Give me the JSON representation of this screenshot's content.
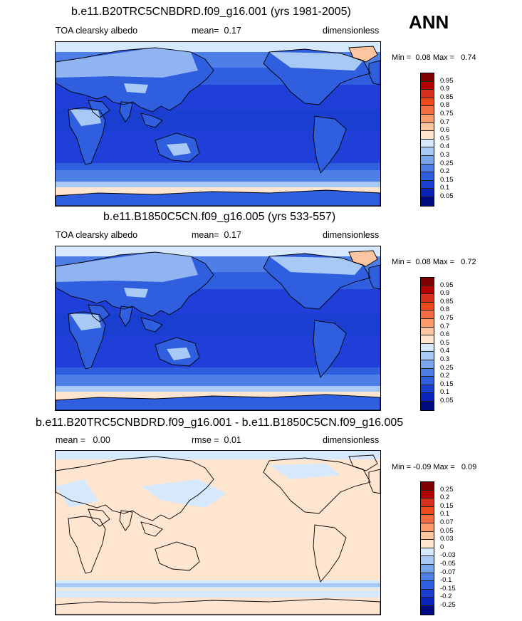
{
  "season": "ANN",
  "panels": [
    {
      "title": "b.e11.B20TRC5CNBDRD.f09_g16.001 (yrs 1981-2005)",
      "left_label": "TOA clearsky albedo",
      "mid_label": "mean=",
      "mid_value": "0.17",
      "right_label": "dimensionless",
      "min_label": "Min =",
      "min_value": "0.08",
      "max_label": "Max =",
      "max_value": "0.74",
      "map_type": "absolute"
    },
    {
      "title": "b.e11.B1850C5CN.f09_g16.005 (yrs 533-557)",
      "left_label": "TOA clearsky albedo",
      "mid_label": "mean=",
      "mid_value": "0.17",
      "right_label": "dimensionless",
      "min_label": "Min =",
      "min_value": "0.08",
      "max_label": "Max =",
      "max_value": "0.72",
      "map_type": "absolute"
    },
    {
      "title": "b.e11.B20TRC5CNBDRD.f09_g16.001 - b.e11.B1850C5CN.f09_g16.005",
      "left_label": "mean =",
      "left_value": "0.00",
      "mid_label": "rmse =",
      "mid_value": "0.01",
      "right_label": "dimensionless",
      "min_label": "Min =",
      "min_value": "-0.09",
      "max_label": "Max =",
      "max_value": "0.09",
      "map_type": "difference"
    }
  ],
  "colorbars": {
    "absolute": {
      "labels": [
        "0.95",
        "0.9",
        "0.85",
        "0.8",
        "0.75",
        "0.7",
        "0.6",
        "0.5",
        "0.4",
        "0.3",
        "0.25",
        "0.2",
        "0.15",
        "0.1",
        "0.05"
      ],
      "colors": [
        "#7f0000",
        "#b30000",
        "#d7301f",
        "#ef4a1c",
        "#f46d43",
        "#fb9a6a",
        "#fdc6a0",
        "#fde5d0",
        "#d6e8fb",
        "#a9c9f5",
        "#7aa6ee",
        "#4e7fe6",
        "#2f5fde",
        "#1a3fd0",
        "#0a22b8",
        "#020a80"
      ]
    },
    "difference": {
      "labels": [
        "0.25",
        "0.2",
        "0.15",
        "0.1",
        "0.07",
        "0.05",
        "0.03",
        "0",
        "-0.03",
        "-0.05",
        "-0.07",
        "-0.1",
        "-0.15",
        "-0.2",
        "-0.25"
      ],
      "colors": [
        "#7f0000",
        "#b30000",
        "#d7301f",
        "#ef4a1c",
        "#f46d43",
        "#fb9a6a",
        "#fdc6a0",
        "#fde5d0",
        "#d6e8fb",
        "#a9c9f5",
        "#7aa6ee",
        "#4e7fe6",
        "#2f5fde",
        "#1a3fd0",
        "#0a22b8",
        "#020a80"
      ]
    }
  },
  "map_colors": {
    "ocean_tropics": "#1f3fd8",
    "ocean_mid": "#2f5fde",
    "ocean_sub": "#4e7fe6",
    "ocean_light": "#a9c9f5",
    "polar_band": "#d6e8fb",
    "sea_ice": "#fde5d0",
    "ice_high": "#fdc6a0",
    "desert": "#a9c9f5",
    "land": "#2f5fde",
    "diff_bg": "#fde5d0",
    "diff_light": "#d6e8fb",
    "diff_med": "#a9c9f5"
  }
}
